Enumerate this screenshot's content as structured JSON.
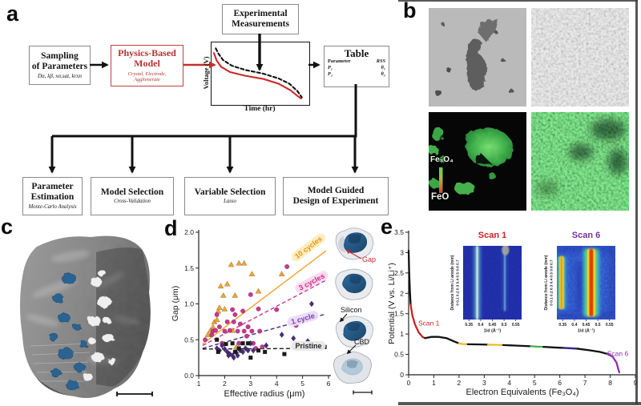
{
  "panels": {
    "a": {
      "label": "a",
      "sampling": {
        "title": "Sampling\nof Parameters",
        "params": "Dα, kβ, xα,sat, krxn"
      },
      "physics": {
        "title": "Physics-Based\nModel",
        "sub": "Crystal, Electrode,\nAgglomerate"
      },
      "experimental": {
        "title": "Experimental\nMeasurements"
      },
      "table": {
        "title": "Table",
        "col1": "Parameter",
        "col2": "RSS",
        "rows": [
          {
            "p": "P₁",
            "r": "θ₁"
          },
          {
            "p": "P₂",
            "r": "θ₂"
          }
        ]
      },
      "outputs": [
        {
          "title": "Parameter\nEstimation",
          "sub": "Monte-Carlo Analysis"
        },
        {
          "title": "Model Selection",
          "sub": "Cross-Validation"
        },
        {
          "title": "Variable Selection",
          "sub": "Lasso"
        },
        {
          "title": "Model Guided\nDesign of Experiment",
          "sub": ""
        }
      ]
    },
    "b": {
      "label": "b",
      "colorbar_top": "Fe₃O₄",
      "colorbar_bottom": "FeO"
    },
    "c": {
      "label": "c"
    },
    "d": {
      "label": "d",
      "annotations": {
        "gap": "Gap",
        "silicon": "Silicon",
        "cbd": "CBD"
      }
    },
    "e": {
      "label": "e"
    }
  },
  "chart_data": [
    {
      "id": "voltage-time-sketch",
      "type": "line",
      "xlabel": "Time (hr)",
      "ylabel": "Voltage (V)",
      "series": [
        {
          "name": "experimental",
          "style": "dashed",
          "color": "#111111",
          "points_norm": [
            [
              0.02,
              0.05
            ],
            [
              0.05,
              0.15
            ],
            [
              0.1,
              0.27
            ],
            [
              0.2,
              0.38
            ],
            [
              0.35,
              0.46
            ],
            [
              0.55,
              0.53
            ],
            [
              0.72,
              0.62
            ],
            [
              0.84,
              0.72
            ],
            [
              0.93,
              0.86
            ],
            [
              0.98,
              0.98
            ]
          ]
        },
        {
          "name": "model",
          "style": "solid",
          "color": "#cc2a2a",
          "points_norm": [
            [
              0.0,
              0.14
            ],
            [
              0.03,
              0.28
            ],
            [
              0.08,
              0.4
            ],
            [
              0.18,
              0.5
            ],
            [
              0.35,
              0.57
            ],
            [
              0.55,
              0.63
            ],
            [
              0.72,
              0.72
            ],
            [
              0.85,
              0.84
            ],
            [
              0.93,
              0.95
            ],
            [
              0.97,
              1.0
            ]
          ]
        }
      ]
    },
    {
      "id": "gap-vs-radius",
      "type": "scatter",
      "xlabel": "Effective radius (μm)",
      "ylabel": "Gap (μm)",
      "xlim": [
        1,
        6
      ],
      "ylim": [
        0,
        2
      ],
      "ytick_decimals": 1,
      "xticks": [
        1,
        2,
        3,
        4,
        5,
        6
      ],
      "yticks": [
        0,
        0.5,
        1,
        1.5,
        2
      ],
      "series": [
        {
          "name": "10 cycles",
          "marker": "triangle",
          "color": "#f0a330",
          "fit": {
            "x": [
              1.15,
              5.9
            ],
            "y": [
              0.44,
              1.74
            ],
            "style": "solid"
          },
          "points": [
            [
              1.35,
              0.57
            ],
            [
              1.45,
              0.63
            ],
            [
              1.55,
              0.68
            ],
            [
              1.6,
              0.75
            ],
            [
              1.7,
              0.78
            ],
            [
              1.75,
              0.9
            ],
            [
              1.8,
              0.95
            ],
            [
              1.85,
              1.25
            ],
            [
              1.95,
              1.12
            ],
            [
              2.0,
              0.93
            ],
            [
              2.1,
              1.28
            ],
            [
              2.25,
              1.55
            ],
            [
              2.3,
              0.63
            ],
            [
              2.4,
              1.12
            ],
            [
              2.45,
              0.4
            ],
            [
              2.55,
              1.57
            ],
            [
              2.75,
              1.57
            ],
            [
              3.05,
              1.42
            ],
            [
              3.3,
              1.18
            ],
            [
              4.2,
              1.42
            ]
          ]
        },
        {
          "name": "3 cycles",
          "marker": "circle",
          "color": "#c9368f",
          "fit": {
            "x": [
              1.15,
              5.9
            ],
            "y": [
              0.42,
              1.33
            ],
            "style": "dashed"
          },
          "points": [
            [
              1.25,
              0.5
            ],
            [
              1.5,
              0.57
            ],
            [
              1.55,
              0.62
            ],
            [
              1.65,
              0.63
            ],
            [
              1.7,
              0.85
            ],
            [
              1.8,
              0.68
            ],
            [
              1.9,
              0.45
            ],
            [
              2.0,
              0.62
            ],
            [
              2.1,
              0.75
            ],
            [
              2.2,
              0.63
            ],
            [
              2.3,
              0.92
            ],
            [
              2.35,
              0.75
            ],
            [
              2.4,
              0.85
            ],
            [
              2.5,
              0.62
            ],
            [
              2.55,
              0.45
            ],
            [
              2.6,
              0.72
            ],
            [
              2.7,
              0.9
            ],
            [
              2.75,
              0.62
            ],
            [
              2.85,
              0.55
            ],
            [
              2.9,
              0.68
            ],
            [
              3.0,
              1.13
            ],
            [
              3.05,
              0.62
            ],
            [
              3.1,
              0.45
            ],
            [
              3.2,
              0.38
            ],
            [
              3.3,
              0.93
            ],
            [
              3.35,
              0.62
            ],
            [
              3.45,
              0.4
            ],
            [
              4.0,
              0.92
            ],
            [
              4.4,
              1.52
            ],
            [
              4.75,
              0.7
            ]
          ]
        },
        {
          "name": "1 cycle",
          "marker": "diamond",
          "color": "#4a2d7a",
          "fit": {
            "x": [
              1.15,
              5.9
            ],
            "y": [
              0.38,
              0.86
            ],
            "style": "dashed"
          },
          "points": [
            [
              1.7,
              0.38
            ],
            [
              1.8,
              0.35
            ],
            [
              1.9,
              0.42
            ],
            [
              2.0,
              0.37
            ],
            [
              2.1,
              0.33
            ],
            [
              2.15,
              0.28
            ],
            [
              2.2,
              0.3
            ],
            [
              2.3,
              0.28
            ],
            [
              2.35,
              0.25
            ],
            [
              2.45,
              0.32
            ],
            [
              2.5,
              0.28
            ],
            [
              2.6,
              0.35
            ],
            [
              2.7,
              0.33
            ],
            [
              2.8,
              0.38
            ],
            [
              2.9,
              0.35
            ],
            [
              3.0,
              0.45
            ],
            [
              3.1,
              0.35
            ],
            [
              3.6,
              0.42
            ],
            [
              4.2,
              0.57
            ],
            [
              4.65,
              0.52
            ],
            [
              5.2,
              0.48
            ],
            [
              5.35,
              1.0
            ]
          ]
        },
        {
          "name": "Pristine",
          "marker": "square",
          "color": "#1a1a1a",
          "fit": {
            "x": [
              1.15,
              5.9
            ],
            "y": [
              0.37,
              0.38
            ],
            "style": "dashed"
          },
          "points": [
            [
              1.7,
              0.5
            ],
            [
              1.75,
              0.33
            ],
            [
              2.05,
              0.44
            ],
            [
              2.3,
              0.45
            ],
            [
              2.4,
              0.33
            ],
            [
              2.55,
              0.38
            ],
            [
              2.7,
              0.45
            ],
            [
              2.9,
              0.45
            ],
            [
              3.0,
              0.25
            ],
            [
              3.3,
              0.35
            ],
            [
              3.55,
              0.33
            ],
            [
              4.3,
              0.3
            ],
            [
              5.85,
              0.4
            ]
          ]
        }
      ]
    },
    {
      "id": "discharge-curve",
      "type": "line",
      "xlabel": "Electron Equivalents (Fe₃O₄)",
      "ylabel": "Potential (V vs. Li/Li⁺)",
      "xlim": [
        0,
        9
      ],
      "ylim": [
        0,
        3.5
      ],
      "xticks": [
        0,
        1,
        2,
        3,
        4,
        5,
        6,
        7,
        8,
        9
      ],
      "yticks": [
        0,
        0.5,
        1,
        1.5,
        2,
        2.5,
        3,
        3.5
      ],
      "segments": [
        {
          "color": "#111111",
          "points": [
            [
              0,
              3.05
            ],
            [
              0.02,
              2.55
            ],
            [
              0.05,
              2.05
            ],
            [
              0.08,
              1.72
            ]
          ]
        },
        {
          "color": "#cc2222",
          "points": [
            [
              0.08,
              1.72
            ],
            [
              0.15,
              1.45
            ],
            [
              0.25,
              1.24
            ],
            [
              0.4,
              1.04
            ],
            [
              0.55,
              0.93
            ],
            [
              0.65,
              0.9
            ]
          ]
        },
        {
          "color": "#111111",
          "points": [
            [
              0.65,
              0.9
            ],
            [
              0.9,
              0.93
            ],
            [
              1.2,
              0.93
            ],
            [
              1.5,
              0.9
            ],
            [
              1.8,
              0.82
            ],
            [
              2.0,
              0.77
            ]
          ]
        },
        {
          "color": "#f2b731",
          "points": [
            [
              2.0,
              0.77
            ],
            [
              2.15,
              0.755
            ],
            [
              2.35,
              0.75
            ]
          ]
        },
        {
          "color": "#111111",
          "points": [
            [
              2.35,
              0.75
            ],
            [
              2.8,
              0.745
            ],
            [
              3.15,
              0.74
            ]
          ]
        },
        {
          "color": "#f2b731",
          "points": [
            [
              3.15,
              0.74
            ],
            [
              3.5,
              0.735
            ],
            [
              3.75,
              0.73
            ]
          ]
        },
        {
          "color": "#111111",
          "points": [
            [
              3.75,
              0.73
            ],
            [
              4.3,
              0.715
            ],
            [
              4.85,
              0.7
            ]
          ]
        },
        {
          "color": "#3cb54a",
          "points": [
            [
              4.85,
              0.7
            ],
            [
              5.1,
              0.69
            ],
            [
              5.35,
              0.685
            ]
          ]
        },
        {
          "color": "#111111",
          "points": [
            [
              5.35,
              0.685
            ],
            [
              5.8,
              0.67
            ],
            [
              6.15,
              0.66
            ]
          ]
        },
        {
          "color": "#26268c",
          "points": [
            [
              6.15,
              0.66
            ],
            [
              6.45,
              0.65
            ],
            [
              6.7,
              0.64
            ]
          ]
        },
        {
          "color": "#111111",
          "points": [
            [
              6.7,
              0.64
            ],
            [
              7.2,
              0.6
            ],
            [
              7.6,
              0.56
            ],
            [
              7.9,
              0.51
            ]
          ]
        },
        {
          "color": "#8b2fb0",
          "points": [
            [
              7.9,
              0.51
            ],
            [
              8.1,
              0.44
            ],
            [
              8.25,
              0.3
            ],
            [
              8.33,
              0.12
            ],
            [
              8.36,
              0.06
            ]
          ]
        }
      ],
      "annotations": [
        {
          "text": "Scan 1",
          "color": "#cc2222",
          "x": 0.38,
          "y": 1.27,
          "anchor": "start"
        },
        {
          "text": "Scan 6",
          "color": "#8b2fb0",
          "x": 8.72,
          "y": 0.52,
          "anchor": "end"
        }
      ]
    },
    {
      "id": "xrd-map-scan1",
      "type": "heatmap",
      "title": "Scan 1",
      "xlabel": "1/d (Å⁻¹)",
      "ylabel": "Distance from Li anode (mm)",
      "xrange": [
        0.325,
        0.575
      ],
      "yrange": [
        0,
        0.7
      ],
      "xticks": [
        0.35,
        0.4,
        0.45,
        0.5,
        0.55
      ],
      "yticks": [
        0,
        0.1,
        0.2,
        0.3,
        0.4,
        0.5,
        0.6,
        0.7
      ],
      "features": [
        {
          "type": "streak",
          "x": 0.385,
          "w": 0.007,
          "y0": 0.0,
          "y1": 0.7,
          "layers": [
            {
              "c": "#3fb4e8",
              "s": 4.5,
              "o": 0.4
            },
            {
              "c": "#8fe0c0",
              "s": 2.2,
              "o": 0.7
            },
            {
              "c": "#f2f8e2",
              "s": 1,
              "o": 0.95
            }
          ]
        },
        {
          "type": "streak",
          "x": 0.503,
          "w": 0.006,
          "y0": 0.08,
          "y1": 0.7,
          "layers": [
            {
              "c": "#4aa8dd",
              "s": 3,
              "o": 0.3
            },
            {
              "c": "#a8dcf0",
              "s": 1,
              "o": 0.65
            }
          ]
        },
        {
          "type": "blob",
          "x": 0.506,
          "y": 0.66,
          "rx": 0.016,
          "ry": 0.05,
          "c": "#a8a896",
          "o": 0.9
        }
      ]
    },
    {
      "id": "xrd-map-scan6",
      "type": "heatmap",
      "title": "Scan 6",
      "xlabel": "1/d (Å⁻¹)",
      "ylabel": "Distance from Li anode (mm)",
      "xrange": [
        0.325,
        0.575
      ],
      "yrange": [
        0,
        0.7
      ],
      "xticks": [
        0.35,
        0.4,
        0.45,
        0.5,
        0.55
      ],
      "yticks": [
        0,
        0.1,
        0.2,
        0.3,
        0.4,
        0.5,
        0.6,
        0.7
      ],
      "features": [
        {
          "type": "streak",
          "x": 0.472,
          "w": 0.022,
          "y0": 0.03,
          "y1": 0.67,
          "layers": [
            {
              "c": "#35c8de",
              "s": 3.2,
              "o": 0.75
            },
            {
              "c": "#7fdd55",
              "s": 2.3,
              "o": 0.8
            },
            {
              "c": "#ffe822",
              "s": 1.5,
              "o": 0.92
            },
            {
              "c": "#e83300",
              "s": 0.8,
              "o": 0.95
            }
          ]
        },
        {
          "type": "streak",
          "x": 0.345,
          "w": 0.013,
          "y0": 0.1,
          "y1": 0.6,
          "layers": [
            {
              "c": "#44ccdd",
              "s": 3,
              "o": 0.6
            },
            {
              "c": "#96e655",
              "s": 1.9,
              "o": 0.8
            },
            {
              "c": "#ffe822",
              "s": 1.1,
              "o": 0.9
            },
            {
              "c": "#ff6211",
              "s": 0.5,
              "o": 0.85
            }
          ]
        },
        {
          "type": "mark",
          "x": 0.472,
          "w": 0.004,
          "y0": 0.67,
          "y1": 0.7,
          "c": "#b03ab0",
          "o": 0.95
        }
      ]
    }
  ]
}
